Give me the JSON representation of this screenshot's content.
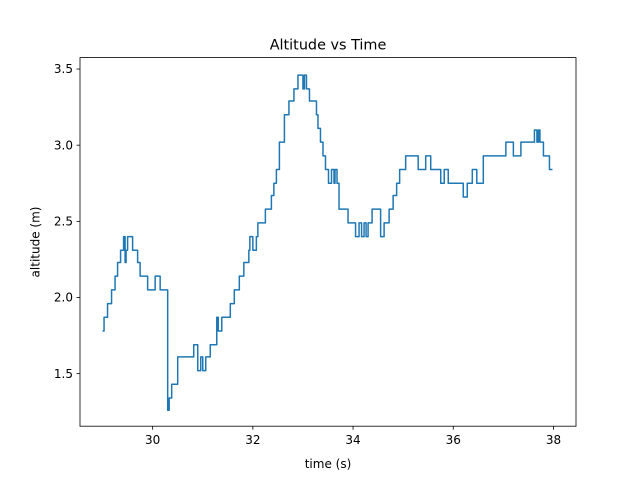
{
  "chart_data": {
    "type": "line",
    "title": "Altitude vs Time",
    "xlabel": "time (s)",
    "ylabel": "altitude (m)",
    "xlim": [
      28.55,
      38.45
    ],
    "ylim": [
      1.155,
      3.575
    ],
    "xticks": [
      30,
      32,
      34,
      36,
      38
    ],
    "xtick_labels": [
      "30",
      "32",
      "34",
      "36",
      "38"
    ],
    "yticks": [
      1.5,
      2.0,
      2.5,
      3.0,
      3.5
    ],
    "ytick_labels": [
      "1.5",
      "2.0",
      "2.5",
      "3.0",
      "3.5"
    ],
    "grid": false,
    "line_color": "#1f77b4",
    "series": [
      {
        "step": "post",
        "x": [
          29.0,
          29.03,
          29.1,
          29.18,
          29.25,
          29.3,
          29.36,
          29.42,
          29.45,
          29.47,
          29.5,
          29.6,
          29.67,
          29.7,
          29.75,
          29.9,
          30.05,
          30.15,
          30.3,
          30.33,
          30.38,
          30.5,
          30.82,
          30.9,
          30.96,
          31.0,
          31.06,
          31.15,
          31.28,
          31.31,
          31.38,
          31.55,
          31.63,
          31.73,
          31.82,
          31.92,
          31.94,
          32.0,
          32.07,
          32.1,
          32.25,
          32.37,
          32.42,
          32.47,
          32.53,
          32.63,
          32.72,
          32.82,
          32.88,
          32.9,
          33.0,
          33.03,
          33.07,
          33.13,
          33.27,
          33.3,
          33.35,
          33.4,
          33.45,
          33.51,
          33.57,
          33.62,
          33.64,
          33.68,
          33.72,
          33.9,
          34.05,
          34.12,
          34.17,
          34.22,
          34.26,
          34.3,
          34.38,
          34.55,
          34.62,
          34.72,
          34.8,
          34.87,
          34.93,
          35.05,
          35.3,
          35.45,
          35.55,
          35.75,
          35.82,
          35.9,
          36.2,
          36.28,
          36.38,
          36.47,
          36.6,
          36.95,
          37.05,
          37.2,
          37.35,
          37.5,
          37.62,
          37.67,
          37.7,
          37.73,
          37.8,
          37.92,
          37.98
        ],
        "y": [
          1.78,
          1.87,
          1.96,
          2.05,
          2.14,
          2.23,
          2.31,
          2.4,
          2.23,
          2.31,
          2.4,
          2.31,
          2.31,
          2.23,
          2.14,
          2.05,
          2.14,
          2.05,
          1.26,
          1.34,
          1.43,
          1.61,
          1.69,
          1.52,
          1.61,
          1.52,
          1.61,
          1.69,
          1.87,
          1.78,
          1.87,
          1.96,
          2.05,
          2.14,
          2.23,
          2.31,
          2.4,
          2.31,
          2.4,
          2.49,
          2.58,
          2.67,
          2.75,
          2.84,
          3.02,
          3.2,
          3.29,
          3.37,
          3.37,
          3.46,
          3.37,
          3.46,
          3.37,
          3.29,
          3.2,
          3.11,
          3.02,
          2.93,
          2.84,
          2.75,
          2.84,
          2.75,
          2.84,
          2.75,
          2.58,
          2.49,
          2.4,
          2.49,
          2.4,
          2.49,
          2.4,
          2.49,
          2.58,
          2.4,
          2.49,
          2.58,
          2.67,
          2.75,
          2.84,
          2.93,
          2.84,
          2.93,
          2.84,
          2.75,
          2.84,
          2.75,
          2.66,
          2.75,
          2.84,
          2.75,
          2.93,
          2.93,
          3.02,
          2.93,
          3.02,
          3.02,
          3.1,
          3.02,
          3.1,
          3.02,
          2.93,
          2.84,
          2.84
        ]
      }
    ]
  }
}
